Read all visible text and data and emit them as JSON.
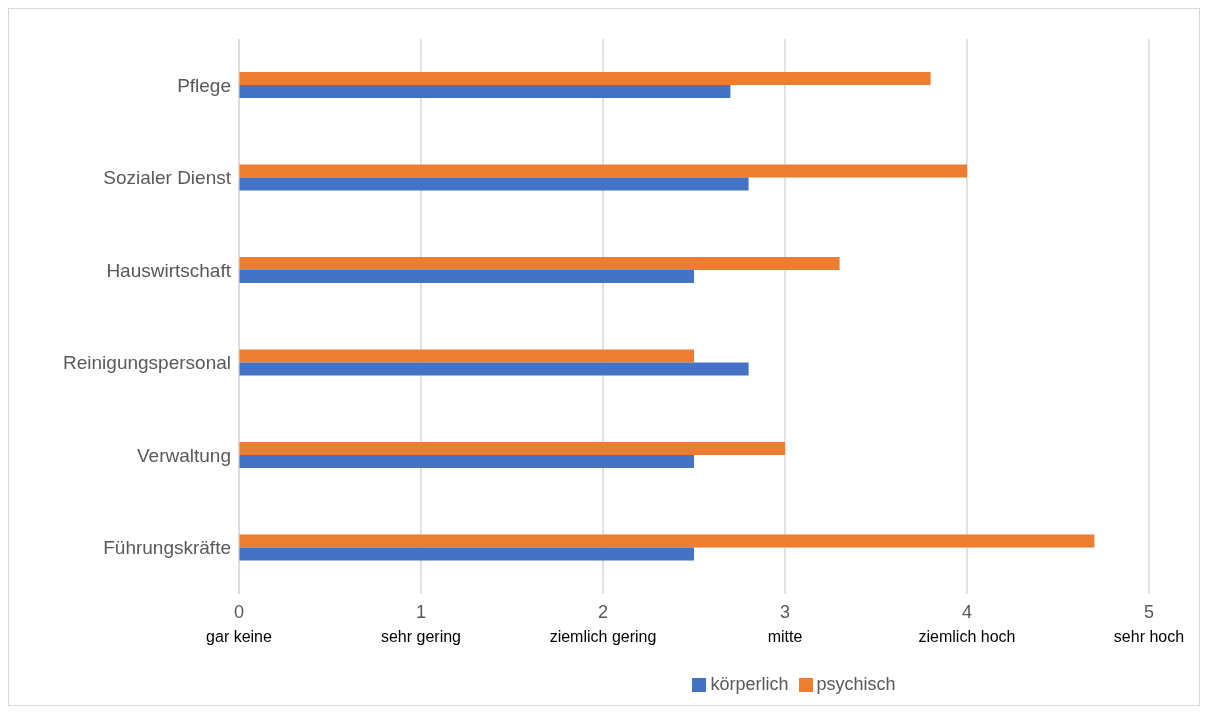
{
  "chart_data": {
    "type": "bar",
    "orientation": "horizontal",
    "categories": [
      "Pflege",
      "Sozialer Dienst",
      "Hauswirtschaft",
      "Reinigungspersonal",
      "Verwaltung",
      "Führungskräfte"
    ],
    "series": [
      {
        "name": "psychisch",
        "color": "#ed7d31",
        "values": [
          3.8,
          4.0,
          3.3,
          2.5,
          3.0,
          4.7
        ]
      },
      {
        "name": "körperlich",
        "color": "#4472c4",
        "values": [
          2.7,
          2.8,
          2.5,
          2.8,
          2.5,
          2.5
        ]
      }
    ],
    "xlim": [
      0,
      5
    ],
    "xticks": [
      0,
      1,
      2,
      3,
      4,
      5
    ],
    "grid": "x",
    "legend": "bottom",
    "annotations": [
      "gar keine",
      "sehr gering",
      "ziemlich gering",
      "mitte",
      "ziemlich hoch",
      "sehr hoch"
    ]
  }
}
